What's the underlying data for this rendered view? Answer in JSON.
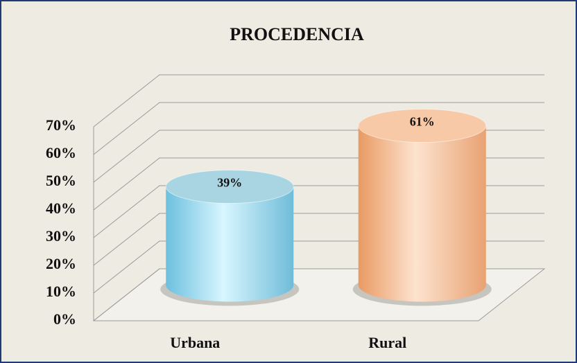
{
  "chart_data": {
    "type": "cylinder",
    "title": "PROCEDENCIA",
    "categories": [
      "Urbana",
      "Rural"
    ],
    "values": [
      39,
      61
    ],
    "value_labels": [
      "39%",
      "61%"
    ],
    "colors": [
      "#8fd6ee",
      "#f6b283"
    ],
    "ylim": [
      0,
      70
    ],
    "yticks": [
      {
        "value": 0,
        "label": "0%"
      },
      {
        "value": 10,
        "label": "10%"
      },
      {
        "value": 20,
        "label": "20%"
      },
      {
        "value": 30,
        "label": "30%"
      },
      {
        "value": 40,
        "label": "40%"
      },
      {
        "value": 50,
        "label": "50%"
      },
      {
        "value": 60,
        "label": "60%"
      },
      {
        "value": 70,
        "label": "70%"
      }
    ],
    "grid": true
  }
}
